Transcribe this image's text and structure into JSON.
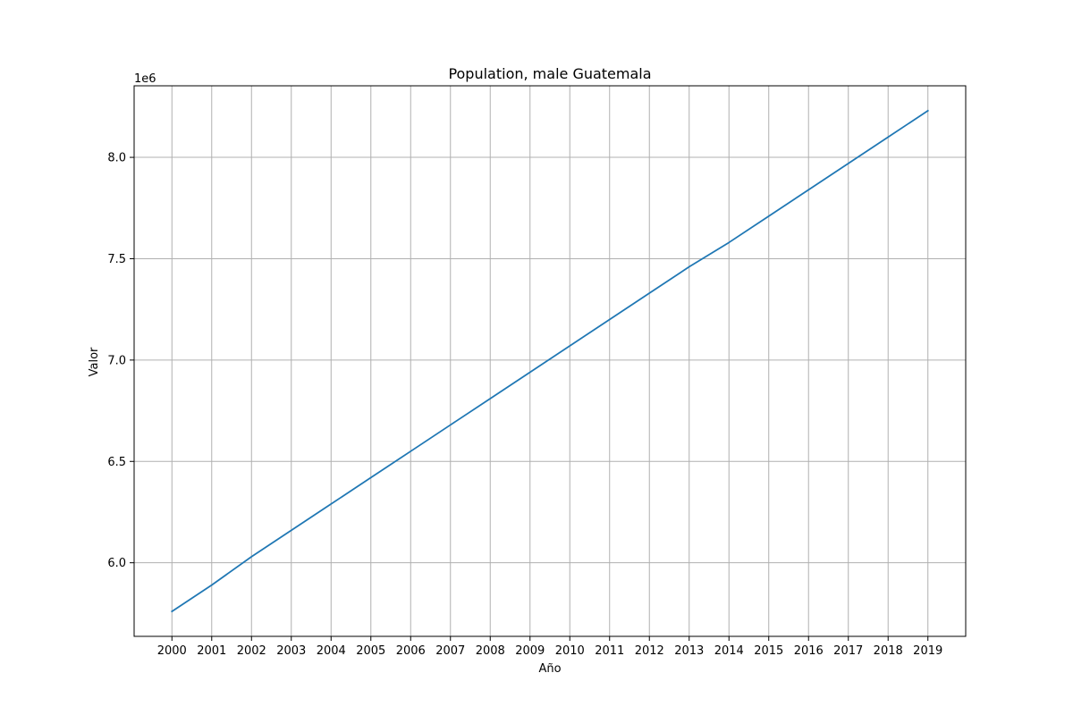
{
  "chart_data": {
    "type": "line",
    "title": "Population, male Guatemala",
    "xlabel": "Año",
    "ylabel": "Valor",
    "y_offset_label": "1e6",
    "x": [
      2000,
      2001,
      2002,
      2003,
      2004,
      2005,
      2006,
      2007,
      2008,
      2009,
      2010,
      2011,
      2012,
      2013,
      2014,
      2015,
      2016,
      2017,
      2018,
      2019
    ],
    "x_tick_labels": [
      "2000",
      "2001",
      "2002",
      "2003",
      "2004",
      "2005",
      "2006",
      "2007",
      "2008",
      "2009",
      "2010",
      "2011",
      "2012",
      "2013",
      "2014",
      "2015",
      "2016",
      "2017",
      "2018",
      "2019"
    ],
    "series": [
      {
        "values": [
          5760000,
          5890000,
          6030000,
          6160000,
          6290000,
          6420000,
          6550000,
          6680000,
          6810000,
          6940000,
          7070000,
          7200000,
          7330000,
          7460000,
          7580000,
          7710000,
          7840000,
          7970000,
          8100000,
          8230000
        ],
        "color": "#1f77b4"
      }
    ],
    "y_ticks": [
      6000000,
      6500000,
      7000000,
      7500000,
      8000000
    ],
    "y_tick_labels": [
      "6.0",
      "6.5",
      "7.0",
      "7.5",
      "8.0"
    ],
    "xlim": [
      1999.05,
      2019.95
    ],
    "ylim": [
      5637000,
      8353000
    ],
    "grid": true
  }
}
